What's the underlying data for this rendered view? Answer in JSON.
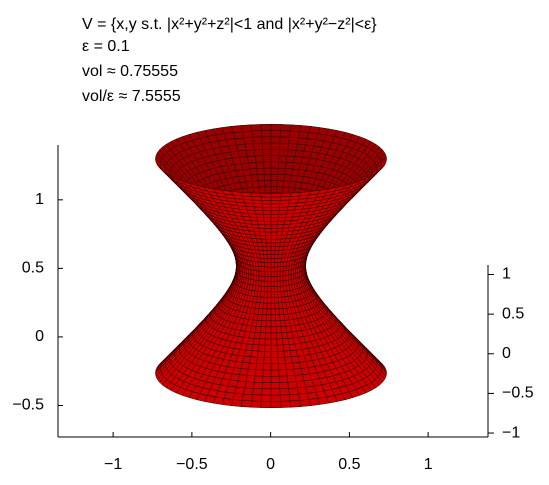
{
  "chart_data": {
    "type": "surface",
    "title": "V = {x,y s.t. |x²+y²+z²|<1 and |x²+y²−z²|<ε}",
    "annotations": [
      "ε = 0.1",
      "vol ≈ 0.75555",
      "vol/ε ≈ 7.5555"
    ],
    "color": "#cc0000",
    "xlim": [
      -1.35,
      1.38
    ],
    "xticks": [
      {
        "value": -1,
        "label": "−1"
      },
      {
        "value": -0.5,
        "label": "−0.5"
      },
      0,
      0.5,
      1
    ],
    "ylim": [
      -0.73,
      1.4
    ],
    "yticks": [
      {
        "value": -0.5,
        "label": "−0.5"
      },
      0,
      0.5,
      1
    ],
    "y2lim": [
      -1.05,
      1.12
    ],
    "y2ticks": [
      {
        "value": -1,
        "label": "−1"
      },
      {
        "value": -0.5,
        "label": "−0.5"
      },
      0,
      0.5,
      1
    ]
  }
}
